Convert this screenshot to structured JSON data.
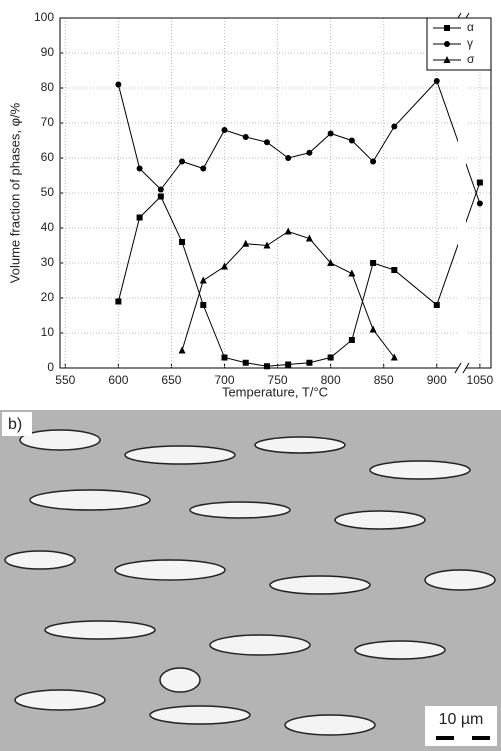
{
  "chart_data": {
    "type": "line",
    "ylabel": "Volume fraction of phases, φ/%",
    "xlabel": "Temperature, T/°C",
    "x": [
      600,
      620,
      640,
      660,
      680,
      700,
      720,
      740,
      760,
      780,
      800,
      820,
      840,
      860,
      900,
      1050
    ],
    "series": [
      {
        "name": "α",
        "color": "#000000",
        "marker": "square",
        "values": [
          19,
          43,
          49,
          36,
          18,
          3,
          1.5,
          0.5,
          1,
          1.5,
          3,
          8,
          30,
          28,
          18,
          53
        ]
      },
      {
        "name": "γ",
        "color": "#000000",
        "marker": "circle",
        "values": [
          81,
          57,
          51,
          59,
          57,
          68,
          66,
          64.5,
          60,
          61.5,
          67,
          65,
          59,
          69,
          82,
          47
        ]
      },
      {
        "name": "σ",
        "color": "#000000",
        "marker": "triangle",
        "values": [
          null,
          null,
          null,
          5,
          25,
          29,
          35.5,
          35,
          39,
          37,
          30,
          27,
          11,
          3,
          null,
          null
        ]
      }
    ],
    "xlim": [
      545,
      1058
    ],
    "x_break": [
      920,
      1040
    ],
    "xticks": [
      550,
      600,
      650,
      700,
      750,
      800,
      850,
      900,
      1050
    ],
    "ylim": [
      0,
      100
    ],
    "yticks": [
      0,
      10,
      20,
      30,
      40,
      50,
      60,
      70,
      80,
      90,
      100
    ],
    "grid": true,
    "legend": "upper right"
  },
  "micrograph": {
    "label": "b)",
    "scale_bar": "10 µm"
  }
}
